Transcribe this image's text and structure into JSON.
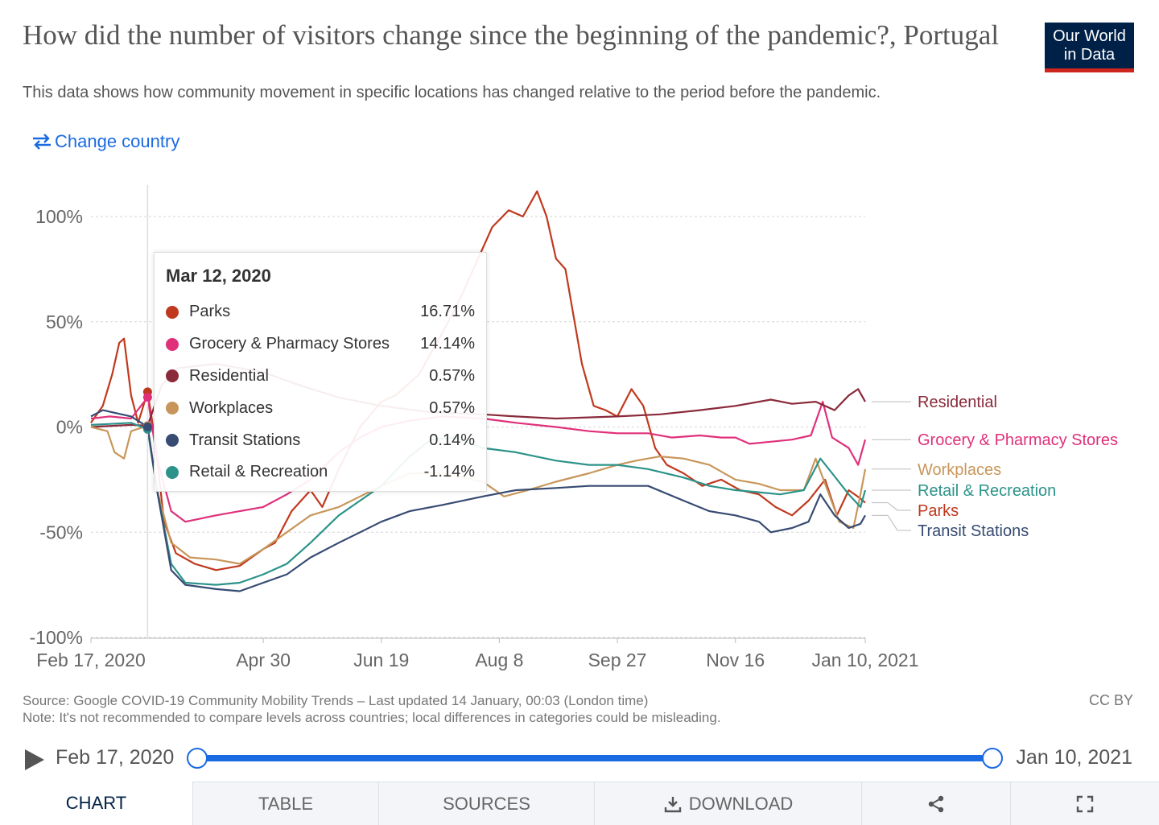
{
  "header": {
    "title": "How did the number of visitors change since the beginning of the pandemic?, Portugal",
    "subtitle": "This data shows how community movement in specific locations has changed relative to the period before the pandemic.",
    "logo_line1": "Our World",
    "logo_line2": "in Data",
    "change_country_label": "Change country"
  },
  "colors": {
    "parks": "#c0391e",
    "grocery": "#e0307a",
    "residential": "#8a2a3a",
    "workplaces": "#c8965a",
    "transit": "#374b73",
    "retail": "#2c938a",
    "link": "#1a6ae2"
  },
  "tooltip": {
    "date": "Mar 12, 2020",
    "rows": [
      {
        "name": "Parks",
        "value": "16.71%",
        "color": "#c0391e"
      },
      {
        "name": "Grocery & Pharmacy Stores",
        "value": "14.14%",
        "color": "#e0307a"
      },
      {
        "name": "Residential",
        "value": "0.57%",
        "color": "#8a2a3a"
      },
      {
        "name": "Workplaces",
        "value": "0.57%",
        "color": "#c8965a"
      },
      {
        "name": "Transit Stations",
        "value": "0.14%",
        "color": "#374b73"
      },
      {
        "name": "Retail & Recreation",
        "value": "-1.14%",
        "color": "#2c938a"
      }
    ]
  },
  "chart_data": {
    "type": "line",
    "x_unit": "date",
    "ylim": [
      -100,
      100
    ],
    "y_ticks": [
      100,
      50,
      0,
      -50,
      -100
    ],
    "y_tick_labels": [
      "100%",
      "50%",
      "0%",
      "-50%",
      "-100%"
    ],
    "x_ticks": [
      "2020-02-17",
      "2020-04-30",
      "2020-06-19",
      "2020-08-08",
      "2020-09-27",
      "2020-11-16",
      "2021-01-10"
    ],
    "x_tick_labels": [
      "Feb 17, 2020",
      "Apr 30",
      "Jun 19",
      "Aug 8",
      "Sep 27",
      "Nov 16",
      "Jan 10, 2021"
    ],
    "hover_date": "2020-03-12",
    "grid": "horizontal-dashed",
    "legend": "right-inline-labels",
    "series": [
      {
        "name": "Parks",
        "key": "parks",
        "color": "#c0391e",
        "points": [
          [
            "2020-02-17",
            2
          ],
          [
            "2020-02-22",
            10
          ],
          [
            "2020-02-26",
            25
          ],
          [
            "2020-02-29",
            40
          ],
          [
            "2020-03-02",
            42
          ],
          [
            "2020-03-05",
            15
          ],
          [
            "2020-03-08",
            2
          ],
          [
            "2020-03-12",
            16.7
          ],
          [
            "2020-03-15",
            -5
          ],
          [
            "2020-03-19",
            -45
          ],
          [
            "2020-03-24",
            -60
          ],
          [
            "2020-04-01",
            -65
          ],
          [
            "2020-04-10",
            -68
          ],
          [
            "2020-04-20",
            -66
          ],
          [
            "2020-04-30",
            -58
          ],
          [
            "2020-05-05",
            -55
          ],
          [
            "2020-05-12",
            -40
          ],
          [
            "2020-05-20",
            -30
          ],
          [
            "2020-05-25",
            -38
          ],
          [
            "2020-06-01",
            -20
          ],
          [
            "2020-06-10",
            0
          ],
          [
            "2020-06-19",
            12
          ],
          [
            "2020-06-25",
            15
          ],
          [
            "2020-07-05",
            25
          ],
          [
            "2020-07-15",
            45
          ],
          [
            "2020-07-22",
            60
          ],
          [
            "2020-07-30",
            80
          ],
          [
            "2020-08-05",
            95
          ],
          [
            "2020-08-12",
            103
          ],
          [
            "2020-08-18",
            100
          ],
          [
            "2020-08-24",
            112
          ],
          [
            "2020-08-28",
            100
          ],
          [
            "2020-09-01",
            80
          ],
          [
            "2020-09-05",
            75
          ],
          [
            "2020-09-12",
            30
          ],
          [
            "2020-09-17",
            10
          ],
          [
            "2020-09-22",
            8
          ],
          [
            "2020-09-27",
            5
          ],
          [
            "2020-10-03",
            18
          ],
          [
            "2020-10-08",
            10
          ],
          [
            "2020-10-13",
            -10
          ],
          [
            "2020-10-18",
            -18
          ],
          [
            "2020-10-25",
            -22
          ],
          [
            "2020-11-02",
            -28
          ],
          [
            "2020-11-10",
            -25
          ],
          [
            "2020-11-18",
            -30
          ],
          [
            "2020-11-26",
            -32
          ],
          [
            "2020-12-03",
            -38
          ],
          [
            "2020-12-10",
            -42
          ],
          [
            "2020-12-17",
            -35
          ],
          [
            "2020-12-24",
            -25
          ],
          [
            "2020-12-29",
            -42
          ],
          [
            "2021-01-03",
            -30
          ],
          [
            "2021-01-08",
            -34
          ],
          [
            "2021-01-10",
            -36
          ]
        ]
      },
      {
        "name": "Grocery & Pharmacy Stores",
        "key": "grocery",
        "color": "#e0307a",
        "points": [
          [
            "2020-02-17",
            4
          ],
          [
            "2020-02-25",
            5
          ],
          [
            "2020-03-05",
            4
          ],
          [
            "2020-03-12",
            14.1
          ],
          [
            "2020-03-16",
            -15
          ],
          [
            "2020-03-22",
            -40
          ],
          [
            "2020-03-28",
            -45
          ],
          [
            "2020-04-10",
            -42
          ],
          [
            "2020-04-20",
            -40
          ],
          [
            "2020-04-30",
            -38
          ],
          [
            "2020-05-10",
            -32
          ],
          [
            "2020-05-20",
            -25
          ],
          [
            "2020-06-01",
            -12
          ],
          [
            "2020-06-10",
            -5
          ],
          [
            "2020-06-19",
            0
          ],
          [
            "2020-07-01",
            3
          ],
          [
            "2020-07-15",
            5
          ],
          [
            "2020-08-01",
            4
          ],
          [
            "2020-08-15",
            2
          ],
          [
            "2020-09-01",
            0
          ],
          [
            "2020-09-15",
            -2
          ],
          [
            "2020-09-27",
            -3
          ],
          [
            "2020-10-10",
            -3
          ],
          [
            "2020-10-20",
            -5
          ],
          [
            "2020-11-01",
            -4
          ],
          [
            "2020-11-10",
            -5
          ],
          [
            "2020-11-16",
            -5
          ],
          [
            "2020-11-22",
            -8
          ],
          [
            "2020-12-01",
            -7
          ],
          [
            "2020-12-10",
            -6
          ],
          [
            "2020-12-18",
            -4
          ],
          [
            "2020-12-23",
            12
          ],
          [
            "2020-12-27",
            -5
          ],
          [
            "2021-01-03",
            -10
          ],
          [
            "2021-01-07",
            -18
          ],
          [
            "2021-01-10",
            -6
          ]
        ]
      },
      {
        "name": "Residential",
        "key": "residential",
        "color": "#8a2a3a",
        "points": [
          [
            "2020-02-17",
            0
          ],
          [
            "2020-03-05",
            1
          ],
          [
            "2020-03-12",
            0.6
          ],
          [
            "2020-03-18",
            20
          ],
          [
            "2020-03-25",
            28
          ],
          [
            "2020-04-10",
            30
          ],
          [
            "2020-04-30",
            26
          ],
          [
            "2020-05-15",
            20
          ],
          [
            "2020-06-01",
            14
          ],
          [
            "2020-06-19",
            10
          ],
          [
            "2020-07-10",
            7
          ],
          [
            "2020-08-01",
            6
          ],
          [
            "2020-08-15",
            5
          ],
          [
            "2020-09-01",
            4
          ],
          [
            "2020-09-27",
            5
          ],
          [
            "2020-10-15",
            6
          ],
          [
            "2020-11-01",
            8
          ],
          [
            "2020-11-16",
            10
          ],
          [
            "2020-12-01",
            13
          ],
          [
            "2020-12-10",
            11
          ],
          [
            "2020-12-20",
            12
          ],
          [
            "2020-12-28",
            8
          ],
          [
            "2021-01-03",
            15
          ],
          [
            "2021-01-07",
            18
          ],
          [
            "2021-01-10",
            12
          ]
        ]
      },
      {
        "name": "Workplaces",
        "key": "workplaces",
        "color": "#c8965a",
        "points": [
          [
            "2020-02-17",
            0
          ],
          [
            "2020-02-24",
            -2
          ],
          [
            "2020-02-27",
            -12
          ],
          [
            "2020-03-02",
            -15
          ],
          [
            "2020-03-05",
            -2
          ],
          [
            "2020-03-12",
            0.6
          ],
          [
            "2020-03-16",
            -30
          ],
          [
            "2020-03-22",
            -55
          ],
          [
            "2020-03-30",
            -62
          ],
          [
            "2020-04-10",
            -63
          ],
          [
            "2020-04-20",
            -65
          ],
          [
            "2020-04-30",
            -58
          ],
          [
            "2020-05-10",
            -50
          ],
          [
            "2020-05-20",
            -42
          ],
          [
            "2020-06-01",
            -38
          ],
          [
            "2020-06-10",
            -33
          ],
          [
            "2020-06-19",
            -28
          ],
          [
            "2020-07-01",
            -22
          ],
          [
            "2020-07-15",
            -22
          ],
          [
            "2020-08-01",
            -26
          ],
          [
            "2020-08-10",
            -33
          ],
          [
            "2020-08-20",
            -30
          ],
          [
            "2020-09-01",
            -26
          ],
          [
            "2020-09-15",
            -22
          ],
          [
            "2020-09-27",
            -18
          ],
          [
            "2020-10-05",
            -16
          ],
          [
            "2020-10-15",
            -14
          ],
          [
            "2020-10-25",
            -15
          ],
          [
            "2020-11-05",
            -18
          ],
          [
            "2020-11-16",
            -25
          ],
          [
            "2020-11-26",
            -27
          ],
          [
            "2020-12-05",
            -30
          ],
          [
            "2020-12-15",
            -30
          ],
          [
            "2020-12-20",
            -15
          ],
          [
            "2020-12-25",
            -30
          ],
          [
            "2020-12-30",
            -45
          ],
          [
            "2021-01-05",
            -48
          ],
          [
            "2021-01-08",
            -32
          ],
          [
            "2021-01-10",
            -20
          ]
        ]
      },
      {
        "name": "Retail & Recreation",
        "key": "retail",
        "color": "#2c938a",
        "points": [
          [
            "2020-02-17",
            1
          ],
          [
            "2020-03-05",
            2
          ],
          [
            "2020-03-12",
            -1.1
          ],
          [
            "2020-03-16",
            -30
          ],
          [
            "2020-03-22",
            -65
          ],
          [
            "2020-03-28",
            -74
          ],
          [
            "2020-04-10",
            -75
          ],
          [
            "2020-04-20",
            -74
          ],
          [
            "2020-04-30",
            -70
          ],
          [
            "2020-05-10",
            -65
          ],
          [
            "2020-05-20",
            -55
          ],
          [
            "2020-06-01",
            -42
          ],
          [
            "2020-06-10",
            -35
          ],
          [
            "2020-06-19",
            -28
          ],
          [
            "2020-07-01",
            -14
          ],
          [
            "2020-07-10",
            -6
          ],
          [
            "2020-07-20",
            -5
          ],
          [
            "2020-08-01",
            -10
          ],
          [
            "2020-08-15",
            -12
          ],
          [
            "2020-09-01",
            -16
          ],
          [
            "2020-09-15",
            -18
          ],
          [
            "2020-09-27",
            -18
          ],
          [
            "2020-10-10",
            -20
          ],
          [
            "2020-10-25",
            -24
          ],
          [
            "2020-11-05",
            -28
          ],
          [
            "2020-11-16",
            -30
          ],
          [
            "2020-11-26",
            -31
          ],
          [
            "2020-12-05",
            -32
          ],
          [
            "2020-12-15",
            -30
          ],
          [
            "2020-12-22",
            -15
          ],
          [
            "2020-12-27",
            -22
          ],
          [
            "2021-01-03",
            -32
          ],
          [
            "2021-01-08",
            -38
          ],
          [
            "2021-01-10",
            -30
          ]
        ]
      },
      {
        "name": "Transit Stations",
        "key": "transit",
        "color": "#374b73",
        "points": [
          [
            "2020-02-17",
            5
          ],
          [
            "2020-02-22",
            8
          ],
          [
            "2020-03-05",
            5
          ],
          [
            "2020-03-12",
            0.1
          ],
          [
            "2020-03-16",
            -30
          ],
          [
            "2020-03-22",
            -68
          ],
          [
            "2020-03-28",
            -75
          ],
          [
            "2020-04-10",
            -77
          ],
          [
            "2020-04-20",
            -78
          ],
          [
            "2020-04-30",
            -74
          ],
          [
            "2020-05-10",
            -70
          ],
          [
            "2020-05-20",
            -62
          ],
          [
            "2020-06-01",
            -55
          ],
          [
            "2020-06-10",
            -50
          ],
          [
            "2020-06-19",
            -45
          ],
          [
            "2020-07-01",
            -40
          ],
          [
            "2020-07-15",
            -37
          ],
          [
            "2020-08-01",
            -33
          ],
          [
            "2020-08-15",
            -30
          ],
          [
            "2020-09-01",
            -29
          ],
          [
            "2020-09-15",
            -28
          ],
          [
            "2020-09-27",
            -28
          ],
          [
            "2020-10-10",
            -28
          ],
          [
            "2020-10-25",
            -35
          ],
          [
            "2020-11-05",
            -40
          ],
          [
            "2020-11-16",
            -42
          ],
          [
            "2020-11-26",
            -45
          ],
          [
            "2020-12-01",
            -50
          ],
          [
            "2020-12-10",
            -48
          ],
          [
            "2020-12-17",
            -45
          ],
          [
            "2020-12-22",
            -32
          ],
          [
            "2020-12-28",
            -42
          ],
          [
            "2021-01-03",
            -48
          ],
          [
            "2021-01-08",
            -46
          ],
          [
            "2021-01-10",
            -42
          ]
        ]
      }
    ],
    "end_labels": [
      {
        "name": "Residential",
        "key": "residential",
        "color": "#8a2a3a"
      },
      {
        "name": "Grocery & Pharmacy Stores",
        "key": "grocery",
        "color": "#e0307a"
      },
      {
        "name": "Workplaces",
        "key": "workplaces",
        "color": "#c8965a"
      },
      {
        "name": "Retail & Recreation",
        "key": "retail",
        "color": "#2c938a"
      },
      {
        "name": "Parks",
        "key": "parks",
        "color": "#c0391e"
      },
      {
        "name": "Transit Stations",
        "key": "transit",
        "color": "#374b73"
      }
    ]
  },
  "footer": {
    "source": "Source: Google COVID-19 Community Mobility Trends – Last updated 14 January, 00:03 (London time)",
    "note": "Note: It's not recommended to compare levels across countries; local differences in categories could be misleading.",
    "license": "CC BY"
  },
  "timeline": {
    "start": "Feb 17, 2020",
    "end": "Jan 10, 2021"
  },
  "tabs": {
    "chart": "CHART",
    "table": "TABLE",
    "sources": "SOURCES",
    "download": "DOWNLOAD",
    "share_icon": "share-icon",
    "fullscreen_icon": "fullscreen-icon"
  }
}
